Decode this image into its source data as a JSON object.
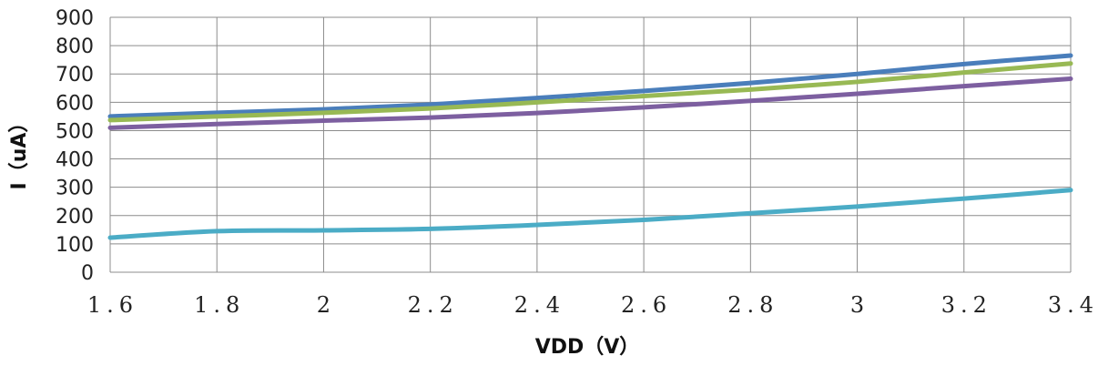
{
  "chart_data": {
    "type": "line",
    "xlabel": "VDD（V）",
    "ylabel": "I（uA）",
    "x": [
      1.6,
      1.8,
      2.0,
      2.2,
      2.4,
      2.6,
      2.8,
      3.0,
      3.2,
      3.4
    ],
    "x_tick_labels": [
      "1.6",
      "1.8",
      "2",
      "2.2",
      "2.4",
      "2.6",
      "2.8",
      "3",
      "3.2",
      "3.4"
    ],
    "y_ticks": [
      0,
      100,
      200,
      300,
      400,
      500,
      600,
      700,
      800,
      900
    ],
    "xlim": [
      1.6,
      3.4
    ],
    "ylim": [
      0,
      900
    ],
    "grid": true,
    "series": [
      {
        "color": "#4a7ebb",
        "values": [
          550,
          563,
          575,
          592,
          615,
          640,
          668,
          700,
          735,
          765
        ]
      },
      {
        "color": "#98b954",
        "values": [
          537,
          550,
          563,
          578,
          600,
          622,
          645,
          672,
          705,
          737
        ]
      },
      {
        "color": "#7d5fa0",
        "values": [
          510,
          523,
          535,
          546,
          562,
          582,
          605,
          630,
          657,
          683
        ]
      },
      {
        "color": "#4bacc6",
        "values": [
          122,
          145,
          148,
          153,
          167,
          185,
          208,
          232,
          260,
          290
        ]
      }
    ]
  }
}
